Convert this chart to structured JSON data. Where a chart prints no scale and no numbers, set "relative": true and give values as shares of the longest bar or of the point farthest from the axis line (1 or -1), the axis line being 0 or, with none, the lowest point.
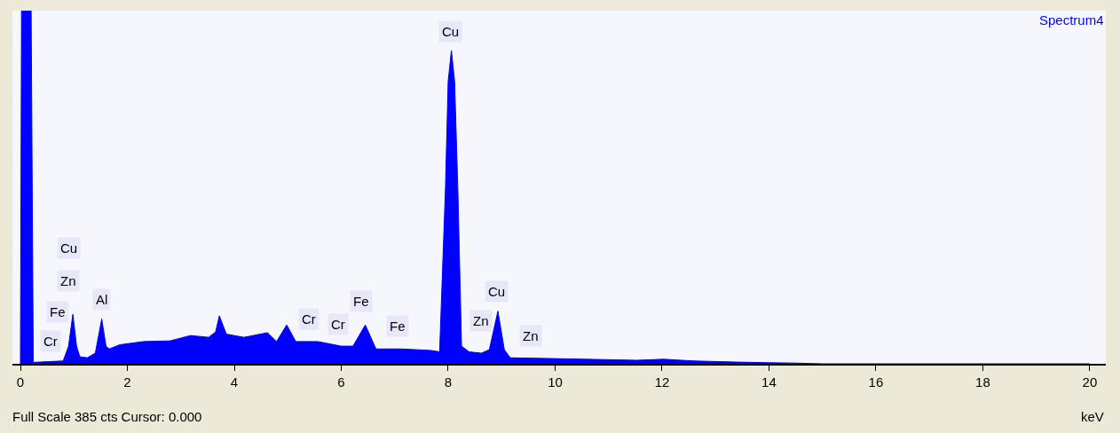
{
  "chart_data": {
    "type": "area",
    "relative": true,
    "xlabel": "keV",
    "xlim": [
      -0.15,
      20.3
    ],
    "xticks": [
      0,
      2,
      4,
      6,
      8,
      10,
      12,
      14,
      16,
      18,
      20
    ],
    "tick_labels": "x",
    "series": [
      {
        "color": "#0000ff",
        "x": [
          0,
          0.02,
          0.2,
          0.24,
          0.5,
          0.8,
          0.9,
          0.98,
          1.05,
          1.11,
          1.25,
          1.4,
          1.52,
          1.6,
          1.66,
          1.86,
          2.3,
          2.8,
          3.18,
          3.52,
          3.65,
          3.72,
          3.85,
          4.18,
          4.62,
          4.79,
          4.98,
          5.15,
          5.56,
          6.0,
          6.22,
          6.45,
          6.65,
          6.73,
          7.12,
          7.67,
          7.84,
          7.95,
          8.0,
          8.06,
          8.12,
          8.18,
          8.25,
          8.39,
          8.62,
          8.77,
          8.93,
          9.05,
          9.16,
          9.88,
          10.55,
          11.53,
          12.03,
          12.6,
          13.37,
          14.0,
          14.5,
          15.0,
          20.0
        ],
        "values": [
          0,
          1,
          1,
          0.004,
          0.006,
          0.008,
          0.05,
          0.14,
          0.05,
          0.02,
          0.017,
          0.03,
          0.127,
          0.05,
          0.042,
          0.054,
          0.063,
          0.065,
          0.08,
          0.075,
          0.09,
          0.136,
          0.084,
          0.075,
          0.088,
          0.063,
          0.11,
          0.063,
          0.063,
          0.05,
          0.05,
          0.11,
          0.042,
          0.042,
          0.042,
          0.038,
          0.034,
          0.5,
          0.8,
          0.887,
          0.8,
          0.5,
          0.05,
          0.034,
          0.03,
          0.04,
          0.149,
          0.04,
          0.017,
          0.015,
          0.013,
          0.01,
          0.013,
          0.008,
          0.005,
          0.003,
          0.002,
          0,
          0
        ]
      }
    ],
    "annotations": [
      {
        "text": "Cr",
        "x": 0.57,
        "y": 0.065
      },
      {
        "text": "Fe",
        "x": 0.7,
        "y": 0.148
      },
      {
        "text": "Zn",
        "x": 0.9,
        "y": 0.236
      },
      {
        "text": "Cu",
        "x": 0.9,
        "y": 0.327
      },
      {
        "text": "Al",
        "x": 1.51,
        "y": 0.183
      },
      {
        "text": "Cr",
        "x": 5.4,
        "y": 0.128
      },
      {
        "text": "Cr",
        "x": 5.95,
        "y": 0.113
      },
      {
        "text": "Fe",
        "x": 6.38,
        "y": 0.176
      },
      {
        "text": "Fe",
        "x": 7.06,
        "y": 0.106
      },
      {
        "text": "Cu",
        "x": 8.04,
        "y": 0.942
      },
      {
        "text": "Zn",
        "x": 8.62,
        "y": 0.121
      },
      {
        "text": "Cu",
        "x": 8.9,
        "y": 0.206
      },
      {
        "text": "Zn",
        "x": 9.55,
        "y": 0.078
      },
      "Spectrum4",
      "Full Scale 385 cts Cursor: 0.000"
    ]
  }
}
